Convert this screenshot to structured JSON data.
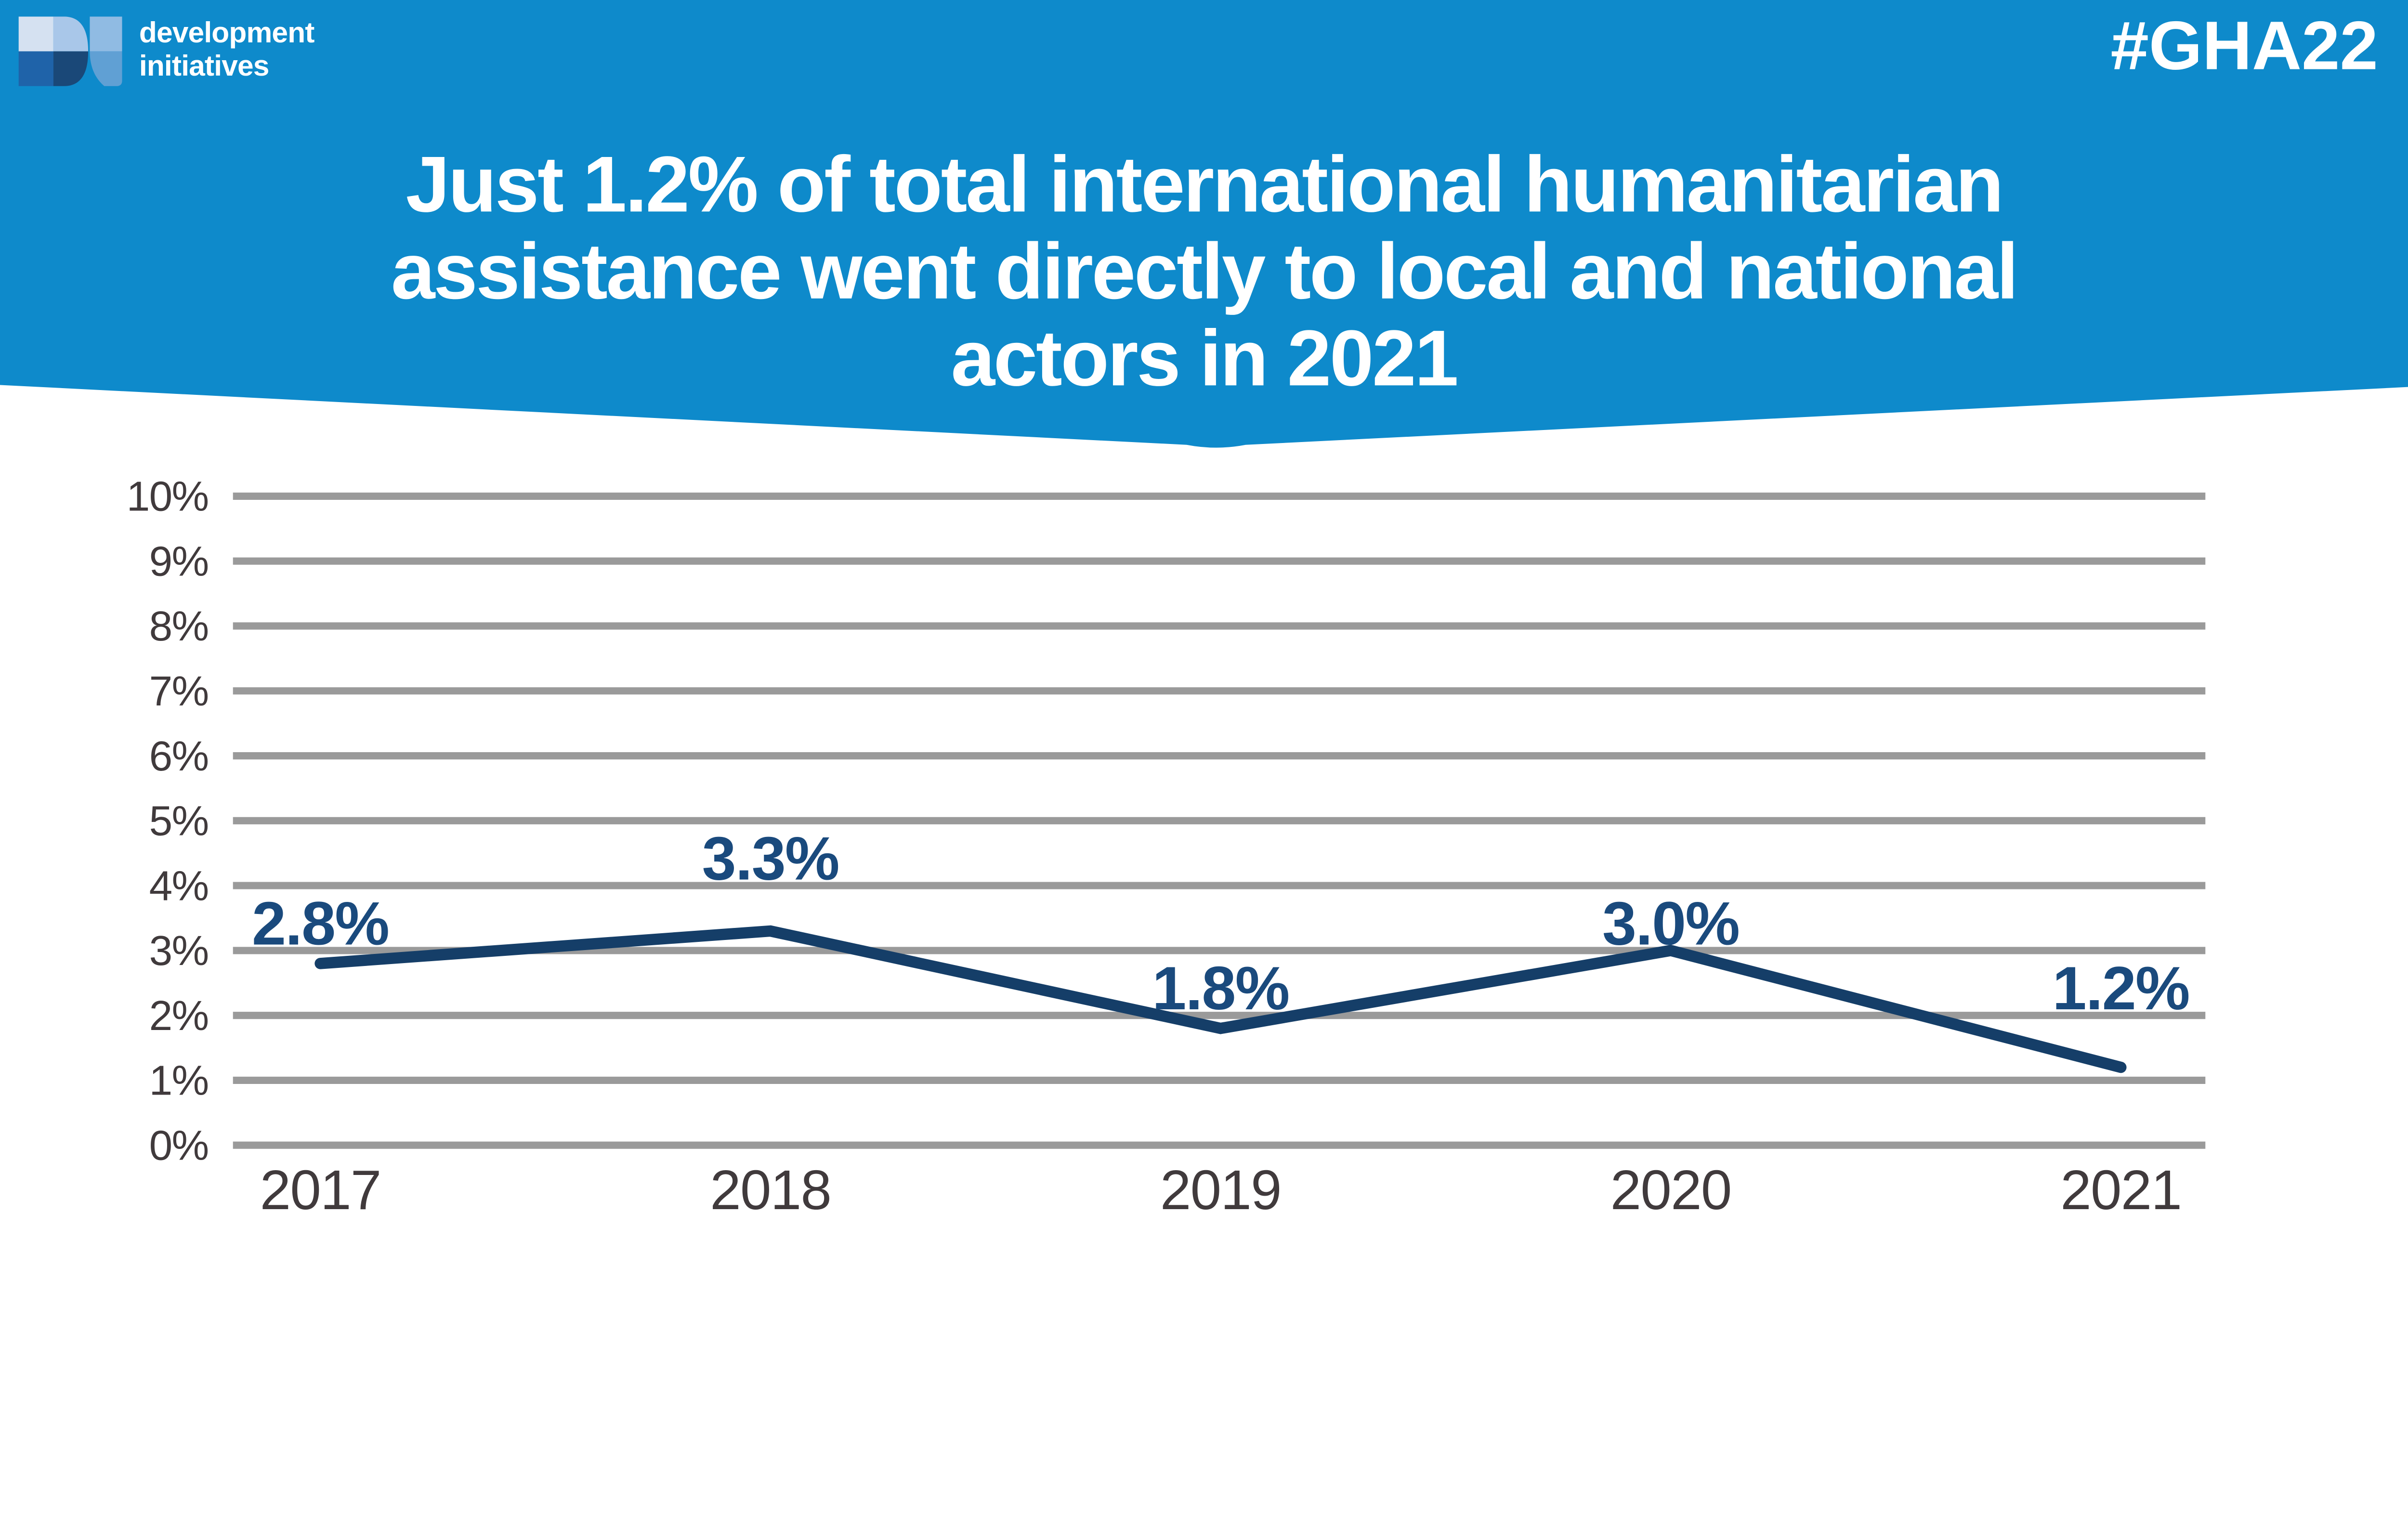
{
  "header": {
    "brand": {
      "line1": "development",
      "line2": "initiatives"
    },
    "hashtag": "#GHA22",
    "title_lines": [
      "Just 1.2% of total international humanitarian",
      "assistance went directly to local and national",
      "actors in 2021"
    ],
    "banner_color": "#0E8ACB",
    "logo_colors": {
      "d_top_left": "#D5E1F1",
      "d_top_right": "#A9C7E9",
      "d_bottom_left": "#1F63A9",
      "d_bottom_right": "#1A4878",
      "i_top": "#90BBE3",
      "i_bottom": "#60A0D4"
    }
  },
  "chart_data": {
    "type": "line",
    "title": "",
    "xlabel": "",
    "ylabel": "",
    "categories": [
      "2017",
      "2018",
      "2019",
      "2020",
      "2021"
    ],
    "values": [
      2.8,
      3.3,
      1.8,
      3.0,
      1.2
    ],
    "point_labels": [
      "2.8%",
      "3.3%",
      "1.8%",
      "3.0%",
      "1.2%"
    ],
    "y_ticks": [
      "10%",
      "9%",
      "8%",
      "7%",
      "6%",
      "5%",
      "4%",
      "3%",
      "2%",
      "1%",
      "0%"
    ],
    "ylim": [
      0,
      10
    ],
    "grid": true,
    "legend": false,
    "colors": {
      "line": "#153E68",
      "point_label": "#1A4A7D",
      "gridline": "#9A9A9A",
      "axis_text": "#403A3C"
    }
  }
}
